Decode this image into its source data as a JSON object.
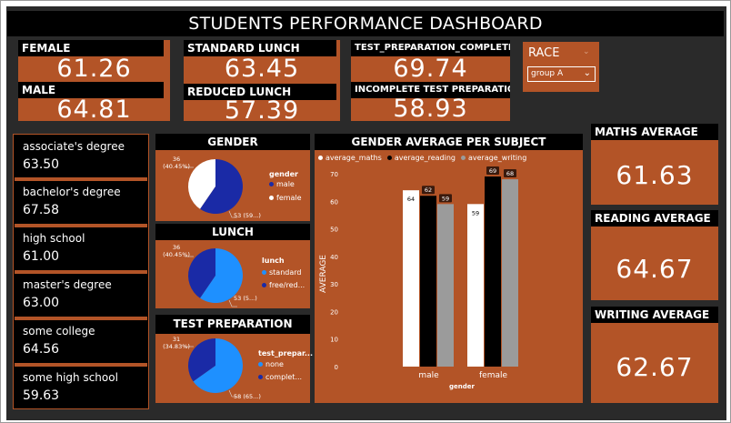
{
  "title": "STUDENTS PERFORMANCE DASHBOARD",
  "kpis": {
    "female_label": "FEMALE",
    "female_value": "61.26",
    "male_label": "MALE",
    "male_value": "64.81",
    "standard_lunch_label": "STANDARD LUNCH",
    "standard_lunch_value": "63.45",
    "reduced_lunch_label": "REDUCED LUNCH",
    "reduced_lunch_value": "57.39",
    "test_complete_label": "TEST_PREPARATION_COMPLETE",
    "test_complete_value": "69.74",
    "test_incomplete_label": "INCOMPLETE TEST PREPARATION",
    "test_incomplete_value": "58.93"
  },
  "race_filter": {
    "label": "RACE",
    "selected": "group A"
  },
  "education": [
    {
      "label": "associate's degree",
      "value": "63.50"
    },
    {
      "label": "bachelor's degree",
      "value": "67.58"
    },
    {
      "label": "high school",
      "value": "61.00"
    },
    {
      "label": "master's degree",
      "value": "63.00"
    },
    {
      "label": "some college",
      "value": "64.56"
    },
    {
      "label": "some high school",
      "value": "59.63"
    }
  ],
  "averages": {
    "maths_label": "MATHS AVERAGE",
    "maths_value": "61.63",
    "reading_label": "READING AVERAGE",
    "reading_value": "64.67",
    "writing_label": "WRITING AVERAGE",
    "writing_value": "62.67"
  },
  "colors": {
    "panel": "#b35427",
    "dark": "#000000",
    "navy": "#1a2aa6",
    "sky": "#1e90ff",
    "white": "#ffffff",
    "grey": "#9b9b9b"
  },
  "chart_data": [
    {
      "type": "pie",
      "title": "GENDER",
      "legend_title": "gender",
      "legend": [
        "male",
        "female"
      ],
      "slices": [
        {
          "name": "male",
          "value": 53,
          "label": "53 (59...)",
          "color": "#1a2aa6"
        },
        {
          "name": "female",
          "value": 36,
          "label": "36\n(40.45%)",
          "color": "#ffffff"
        }
      ]
    },
    {
      "type": "pie",
      "title": "LUNCH",
      "legend_title": "lunch",
      "legend": [
        "standard",
        "free/red..."
      ],
      "slices": [
        {
          "name": "standard",
          "value": 53,
          "label": "53 (5...)",
          "color": "#1e90ff"
        },
        {
          "name": "free/red...",
          "value": 36,
          "label": "36\n(40.45%)",
          "color": "#1a2aa6"
        }
      ]
    },
    {
      "type": "pie",
      "title": "TEST PREPARATION",
      "legend_title": "test_prepar...",
      "legend": [
        "none",
        "complet..."
      ],
      "slices": [
        {
          "name": "none",
          "value": 58,
          "label": "58 (65...)",
          "color": "#1e90ff"
        },
        {
          "name": "complet...",
          "value": 31,
          "label": "31\n(34.83%)",
          "color": "#1a2aa6"
        }
      ]
    },
    {
      "type": "bar",
      "title": "GENDER AVERAGE PER SUBJECT",
      "xlabel": "gender",
      "ylabel": "AVERAGE",
      "categories": [
        "male",
        "female"
      ],
      "ylim": [
        0,
        70
      ],
      "yticks": [
        0,
        10,
        20,
        30,
        40,
        50,
        60,
        70
      ],
      "legend_position": "top-left",
      "series": [
        {
          "name": "average_maths",
          "values": [
            64,
            59
          ],
          "color": "#ffffff"
        },
        {
          "name": "average_reading",
          "values": [
            62,
            69
          ],
          "color": "#000000"
        },
        {
          "name": "average_writing",
          "values": [
            59,
            68
          ],
          "color": "#9b9b9b"
        }
      ]
    }
  ]
}
